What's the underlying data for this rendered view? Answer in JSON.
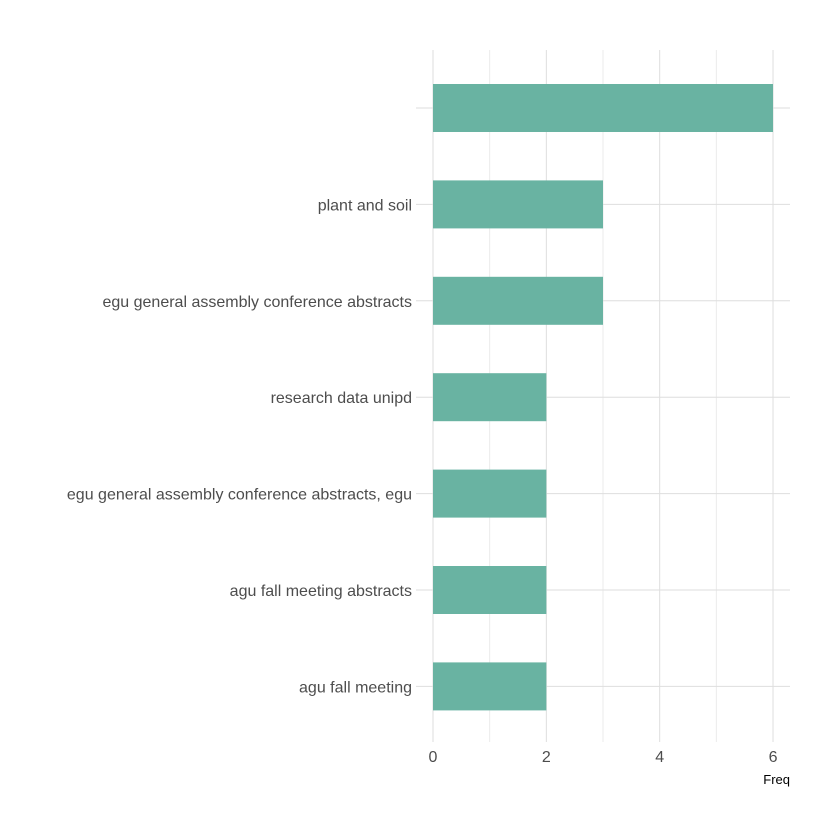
{
  "chart_data": {
    "type": "bar",
    "orientation": "horizontal",
    "categories": [
      "",
      "plant and soil",
      "egu general assembly conference abstracts",
      "research data unipd",
      "egu general assembly conference abstracts, egu",
      "agu fall meeting abstracts",
      "agu fall meeting"
    ],
    "values": [
      6,
      3,
      3,
      2,
      2,
      2,
      2
    ],
    "xlabel": "Freq",
    "ylabel": "",
    "xlim": [
      0,
      6.3
    ],
    "xticks": [
      0,
      2,
      4,
      6
    ],
    "xticks_minor": [
      1,
      3,
      5
    ],
    "grid": true,
    "bar_color": "#69b3a2"
  }
}
